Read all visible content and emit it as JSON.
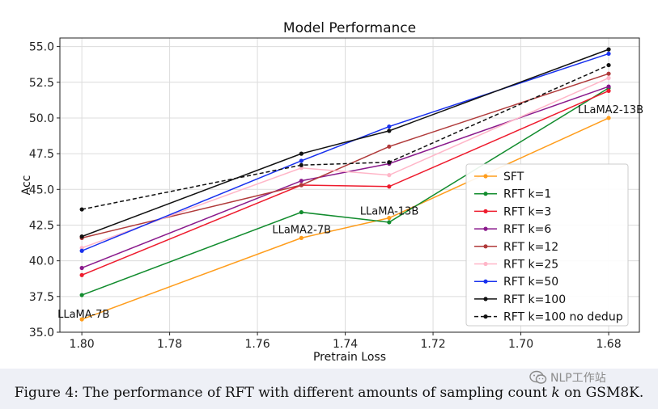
{
  "chart_data": {
    "type": "line",
    "title": "Model Performance",
    "xlabel": "Pretrain Loss",
    "ylabel": "Acc",
    "xlim": [
      1.805,
      1.673
    ],
    "ylim": [
      35.0,
      55.6
    ],
    "x_ticks": [
      1.8,
      1.78,
      1.76,
      1.74,
      1.72,
      1.7,
      1.68
    ],
    "x_tick_labels": [
      "1.80",
      "1.78",
      "1.76",
      "1.74",
      "1.72",
      "1.70",
      "1.68"
    ],
    "y_ticks": [
      35.0,
      37.5,
      40.0,
      42.5,
      45.0,
      47.5,
      50.0,
      52.5,
      55.0
    ],
    "y_tick_labels": [
      "35.0",
      "37.5",
      "40.0",
      "42.5",
      "45.0",
      "47.5",
      "50.0",
      "52.5",
      "55.0"
    ],
    "x": [
      1.8,
      1.75,
      1.73,
      1.68
    ],
    "grid": true,
    "legend_position": "lower-right",
    "series": [
      {
        "name": "SFT",
        "color": "#ff9d1c",
        "dash": false,
        "values": [
          35.9,
          41.6,
          43.0,
          50.0
        ]
      },
      {
        "name": "RFT k=1",
        "color": "#128c2e",
        "dash": false,
        "values": [
          37.6,
          43.4,
          42.7,
          52.1
        ]
      },
      {
        "name": "RFT k=3",
        "color": "#ee1b2d",
        "dash": false,
        "values": [
          39.0,
          45.3,
          45.2,
          51.9
        ]
      },
      {
        "name": "RFT k=6",
        "color": "#8a1a8c",
        "dash": false,
        "values": [
          39.5,
          45.6,
          46.8,
          52.2
        ]
      },
      {
        "name": "RFT k=12",
        "color": "#b03a3a",
        "dash": false,
        "values": [
          41.6,
          45.3,
          48.0,
          53.1
        ]
      },
      {
        "name": "RFT k=25",
        "color": "#ffb6c8",
        "dash": false,
        "values": [
          40.9,
          46.5,
          46.0,
          52.8
        ]
      },
      {
        "name": "RFT k=50",
        "color": "#1730ee",
        "dash": false,
        "values": [
          40.7,
          47.0,
          49.4,
          54.5
        ]
      },
      {
        "name": "RFT k=100",
        "color": "#111111",
        "dash": false,
        "values": [
          41.7,
          47.5,
          49.1,
          54.8
        ]
      },
      {
        "name": "RFT k=100 no dedup",
        "color": "#111111",
        "dash": true,
        "values": [
          43.6,
          46.7,
          46.9,
          53.7
        ]
      }
    ],
    "annotations": [
      {
        "text": "LLaMA-7B",
        "x": 1.8,
        "y": 35.9
      },
      {
        "text": "LLaMA2-7B",
        "x": 1.75,
        "y": 41.6
      },
      {
        "text": "LLaMA-13B",
        "x": 1.73,
        "y": 43.0
      },
      {
        "text": "LLaMA2-13B",
        "x": 1.68,
        "y": 50.0
      }
    ]
  },
  "caption": {
    "prefix": "Figure 4: The performance of RFT with different amounts of sampling count",
    "variable": "k",
    "suffix": "on GSM8K."
  },
  "watermark": {
    "text": "NLP工作站"
  }
}
